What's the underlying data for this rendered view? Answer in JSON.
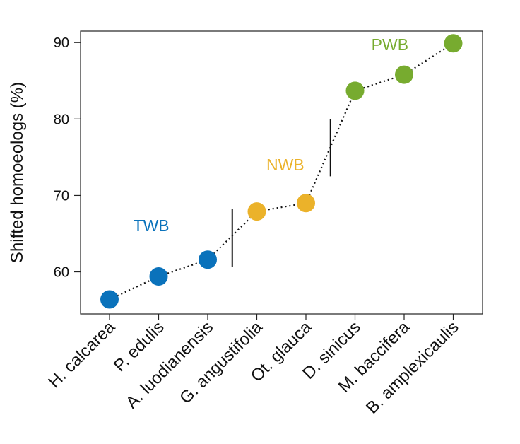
{
  "chart_data": {
    "type": "scatter",
    "title": "",
    "xlabel": "",
    "ylabel": "Shifted homoeologs (%)",
    "ylim": [
      54.5,
      91.5
    ],
    "yticks": [
      60,
      70,
      80,
      90
    ],
    "grid": false,
    "categories": [
      "H. calcarea",
      "P. edulis",
      "A. luodianensis",
      "G. angustifolia",
      "Ot. glauca",
      "D. sinicus",
      "M. baccifera",
      "B. amplexicaulis"
    ],
    "values": [
      56.4,
      59.4,
      61.6,
      67.9,
      69.0,
      83.7,
      85.8,
      89.9
    ],
    "point_groups": [
      "TWB",
      "TWB",
      "TWB",
      "NWB",
      "NWB",
      "PWB",
      "PWB",
      "PWB"
    ],
    "connector_style": "dotted",
    "groups": [
      {
        "name": "TWB",
        "color": "#0a72bb",
        "label_at": {
          "category_index": 0.85,
          "y": 65.3
        }
      },
      {
        "name": "NWB",
        "color": "#ebb22a",
        "label_at": {
          "category_index": 3.58,
          "y": 73.3
        }
      },
      {
        "name": "PWB",
        "color": "#77ab2f",
        "label_at": {
          "category_index": 5.71,
          "y": 89.0
        }
      }
    ],
    "separators": [
      {
        "between": [
          2,
          3
        ],
        "y_range": [
          60.7,
          68.2
        ]
      },
      {
        "between": [
          4,
          5
        ],
        "y_range": [
          72.5,
          80.0
        ]
      }
    ]
  }
}
